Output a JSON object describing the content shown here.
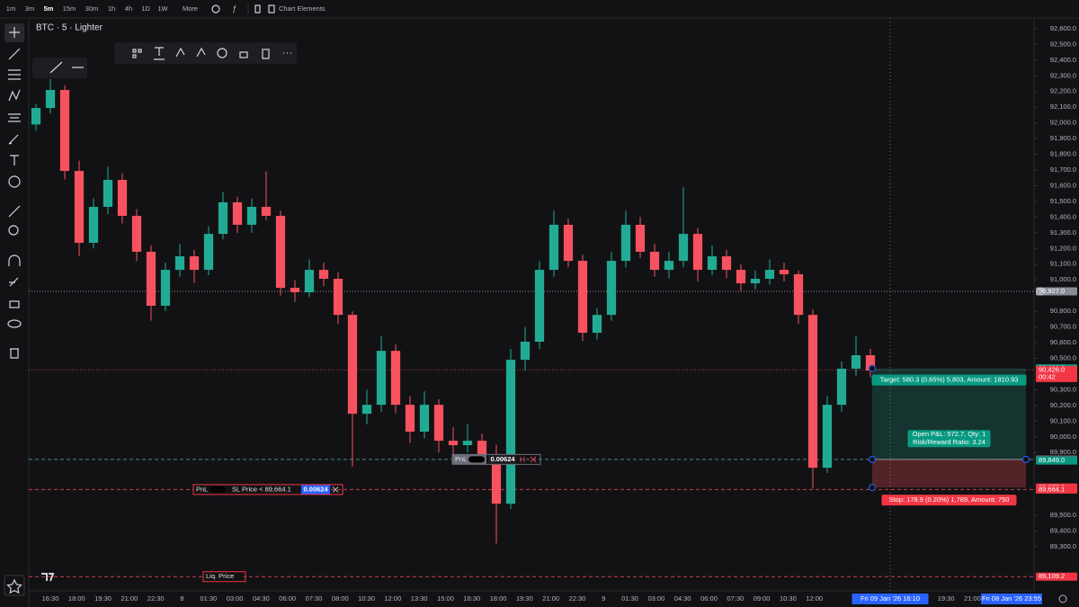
{
  "toolbar": {
    "intervals": [
      "1m",
      "3m",
      "5m",
      "15m",
      "30m",
      "1h",
      "4h",
      "1D",
      "1W"
    ],
    "active": "5m",
    "more": "More",
    "chart_elements": "Chart Elements"
  },
  "chart_data": {
    "type": "candlestick",
    "title": "BTC · 5 · Lighter",
    "up_color": "#22ab94",
    "down_color": "#f7525f",
    "candles": [
      [
        91990,
        92120,
        91950,
        92095
      ],
      [
        92095,
        92280,
        92060,
        92210
      ],
      [
        92210,
        92240,
        91640,
        91694
      ],
      [
        91694,
        91760,
        91150,
        91236
      ],
      [
        91236,
        91520,
        91200,
        91465
      ],
      [
        91465,
        91720,
        91420,
        91637
      ],
      [
        91637,
        91680,
        91360,
        91408
      ],
      [
        91408,
        91450,
        91120,
        91179
      ],
      [
        91179,
        91220,
        90740,
        90835
      ],
      [
        90835,
        91110,
        90800,
        91064
      ],
      [
        91064,
        91230,
        91020,
        91150
      ],
      [
        91150,
        91190,
        90980,
        91064
      ],
      [
        91064,
        91340,
        91030,
        91293
      ],
      [
        91293,
        91560,
        91260,
        91494
      ],
      [
        91494,
        91530,
        91300,
        91351
      ],
      [
        91351,
        91520,
        91300,
        91465
      ],
      [
        91465,
        91690,
        91380,
        91408
      ],
      [
        91408,
        91440,
        90900,
        90949
      ],
      [
        90949,
        91000,
        90860,
        90921
      ],
      [
        90921,
        91130,
        90890,
        91064
      ],
      [
        91064,
        91110,
        90960,
        91007
      ],
      [
        91007,
        91050,
        90720,
        90777
      ],
      [
        90777,
        90800,
        89810,
        90147
      ],
      [
        90147,
        90300,
        90080,
        90204
      ],
      [
        90204,
        90640,
        90160,
        90548
      ],
      [
        90548,
        90590,
        90150,
        90204
      ],
      [
        90204,
        90260,
        89960,
        90033
      ],
      [
        90033,
        90290,
        89990,
        90204
      ],
      [
        90204,
        90240,
        89900,
        89975
      ],
      [
        89975,
        90060,
        89880,
        89947
      ],
      [
        89947,
        90080,
        89900,
        89975
      ],
      [
        89975,
        90020,
        89820,
        89889
      ],
      [
        89889,
        89950,
        89320,
        89574
      ],
      [
        89574,
        90560,
        89540,
        90491
      ],
      [
        90491,
        90700,
        90420,
        90606
      ],
      [
        90606,
        91120,
        90560,
        91064
      ],
      [
        91064,
        91440,
        91020,
        91351
      ],
      [
        91351,
        91390,
        91080,
        91121
      ],
      [
        91121,
        91160,
        90610,
        90663
      ],
      [
        90663,
        90820,
        90620,
        90777
      ],
      [
        90777,
        91180,
        90740,
        91121
      ],
      [
        91121,
        91440,
        91080,
        91351
      ],
      [
        91351,
        91400,
        91140,
        91179
      ],
      [
        91179,
        91230,
        91020,
        91064
      ],
      [
        91064,
        91180,
        91010,
        91121
      ],
      [
        91121,
        91590,
        91080,
        91293
      ],
      [
        91293,
        91330,
        90990,
        91064
      ],
      [
        91064,
        91220,
        91030,
        91150
      ],
      [
        91150,
        91190,
        91010,
        91064
      ],
      [
        91064,
        91100,
        90930,
        90978
      ],
      [
        90978,
        91060,
        90940,
        91007
      ],
      [
        91007,
        91130,
        90970,
        91064
      ],
      [
        91064,
        91110,
        90990,
        91036
      ],
      [
        91036,
        91060,
        90720,
        90777
      ],
      [
        90777,
        90810,
        89670,
        89803
      ],
      [
        89803,
        90260,
        89770,
        90204
      ],
      [
        90204,
        90480,
        90160,
        90434
      ],
      [
        90434,
        90640,
        90390,
        90520
      ],
      [
        90520,
        90560,
        90380,
        90422
      ]
    ],
    "x": [
      "16:30",
      "18:00",
      "19:30",
      "21:00",
      "22:30",
      "8",
      "01:30",
      "03:00",
      "04:30",
      "06:00",
      "07:30",
      "08:00",
      "10:30",
      "12:00",
      "13:30",
      "15:00",
      "16:30",
      "18:00",
      "19:30",
      "21:00",
      "22:30",
      "9",
      "01:30",
      "03:00",
      "04:30",
      "06:00",
      "07:30",
      "09:00",
      "10:30",
      "12:00",
      null,
      null,
      null,
      null,
      "19:30",
      "21:00"
    ],
    "ylim": [
      89019,
      92783
    ],
    "yticks": [
      {
        "value": 92600,
        "label": "92,600.0"
      },
      {
        "value": 92500,
        "label": "92,500.0"
      },
      {
        "value": 92400,
        "label": "92,400.0"
      },
      {
        "value": 92300,
        "label": "92,300.0"
      },
      {
        "value": 92200,
        "label": "92,200.0"
      },
      {
        "value": 92100,
        "label": "92,100.0"
      },
      {
        "value": 92000,
        "label": "92,000.0"
      },
      {
        "value": 91900,
        "label": "91,900.0"
      },
      {
        "value": 91800,
        "label": "91,800.0"
      },
      {
        "value": 91700,
        "label": "91,700.0"
      },
      {
        "value": 91600,
        "label": "91,600.0"
      },
      {
        "value": 91500,
        "label": "91,500.0"
      },
      {
        "value": 91400,
        "label": "91,400.0"
      },
      {
        "value": 91300,
        "label": "91,300.0"
      },
      {
        "value": 91200,
        "label": "91,200.0"
      },
      {
        "value": 91100,
        "label": "91,100.0"
      },
      {
        "value": 91000,
        "label": "91,000.0"
      },
      {
        "value": 90800,
        "label": "90,800.0"
      },
      {
        "value": 90700,
        "label": "90,700.0"
      },
      {
        "value": 90600,
        "label": "90,600.0"
      },
      {
        "value": 90500,
        "label": "90,500.0"
      },
      {
        "value": 90300,
        "label": "90,300.0"
      },
      {
        "value": 90200,
        "label": "90,200.0"
      },
      {
        "value": 90100,
        "label": "90,100.0"
      },
      {
        "value": 90000,
        "label": "90,000.0"
      },
      {
        "value": 89900,
        "label": "89,900.0"
      },
      {
        "value": 89500,
        "label": "89,500.0"
      },
      {
        "value": 89400,
        "label": "89,400.0"
      },
      {
        "value": 89300,
        "label": "89,300.0"
      }
    ],
    "price_lines": [
      {
        "value": 90927,
        "label": "90,927.0",
        "color": "#8a8d96",
        "style": "dotted"
      },
      {
        "value": 90436.5,
        "label": "90,436.5",
        "color": "#089981"
      },
      {
        "value": 90426,
        "label": "90,426.0",
        "color": "#f23645",
        "style": "dotted",
        "sublabel": "00:42"
      },
      {
        "value": 89856.2,
        "label": "89,856.2",
        "color": "#5d606b",
        "style": "dashed-teal",
        "order": {
          "pnl": "PnL ·",
          "qty": "0.00624"
        }
      },
      {
        "value": 89849,
        "label": "89,849.0",
        "color": "#089981"
      },
      {
        "value": 89677.3,
        "label": "89,677.3",
        "color": "#f23645"
      },
      {
        "value": 89664.1,
        "label": "89,664.1",
        "color": "#f23645",
        "style": "dashed",
        "order": {
          "pnl": "PnL ·",
          "text": "SL Price < 89,664.1",
          "qty": "0.00624"
        }
      },
      {
        "value": 89109.2,
        "label": "89,109.2",
        "color": "#f23645",
        "style": "dashed",
        "order": {
          "text": "Liq. Price"
        }
      }
    ],
    "crosshair_time": "Fri 09 Jan '26 16:10",
    "last_time": "Fri 08 Jan '26 23:55",
    "position": {
      "target": 90436.5,
      "entry": 89856.2,
      "stop": 89677.3,
      "target_label": "Target: 580.3 (0.65%) 5,803, Amount: 1810.93",
      "pnl_label": "Open P&L: 572.7, Qty: 1",
      "rr_label": "Risk/Reward Ratio: 3.24",
      "stop_label": "Stop: 178.9 (0.20%) 1,789, Amount: 750"
    }
  }
}
